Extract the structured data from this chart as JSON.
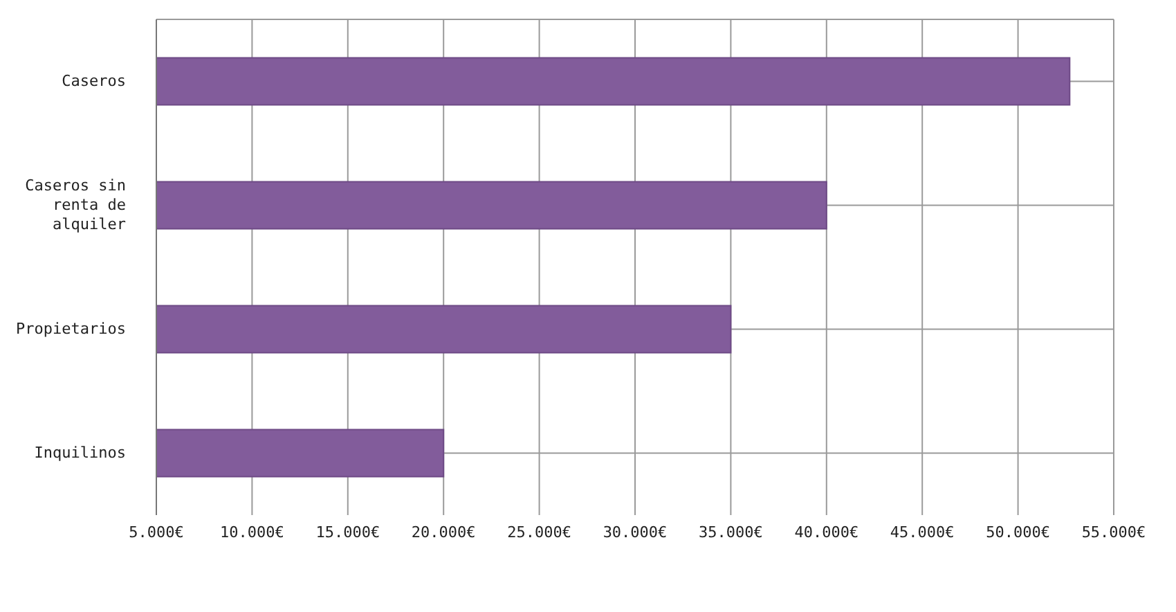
{
  "chart_data": {
    "type": "bar",
    "orientation": "horizontal",
    "categories": [
      "Caseros",
      "Caseros sin renta de alquiler",
      "Propietarios",
      "Inquilinos"
    ],
    "values": [
      52700,
      40000,
      35000,
      20000
    ],
    "color": "#825c9b",
    "xlim": [
      5000,
      55000
    ],
    "xticks": [
      {
        "value": 5000,
        "label": "5.000€"
      },
      {
        "value": 10000,
        "label": "10.000€"
      },
      {
        "value": 15000,
        "label": "15.000€"
      },
      {
        "value": 20000,
        "label": "20.000€"
      },
      {
        "value": 25000,
        "label": "25.000€"
      },
      {
        "value": 30000,
        "label": "30.000€"
      },
      {
        "value": 35000,
        "label": "35.000€"
      },
      {
        "value": 40000,
        "label": "40.000€"
      },
      {
        "value": 45000,
        "label": "45.000€"
      },
      {
        "value": 50000,
        "label": "50.000€"
      },
      {
        "value": 55000,
        "label": "55.000€"
      }
    ],
    "grid": true
  }
}
